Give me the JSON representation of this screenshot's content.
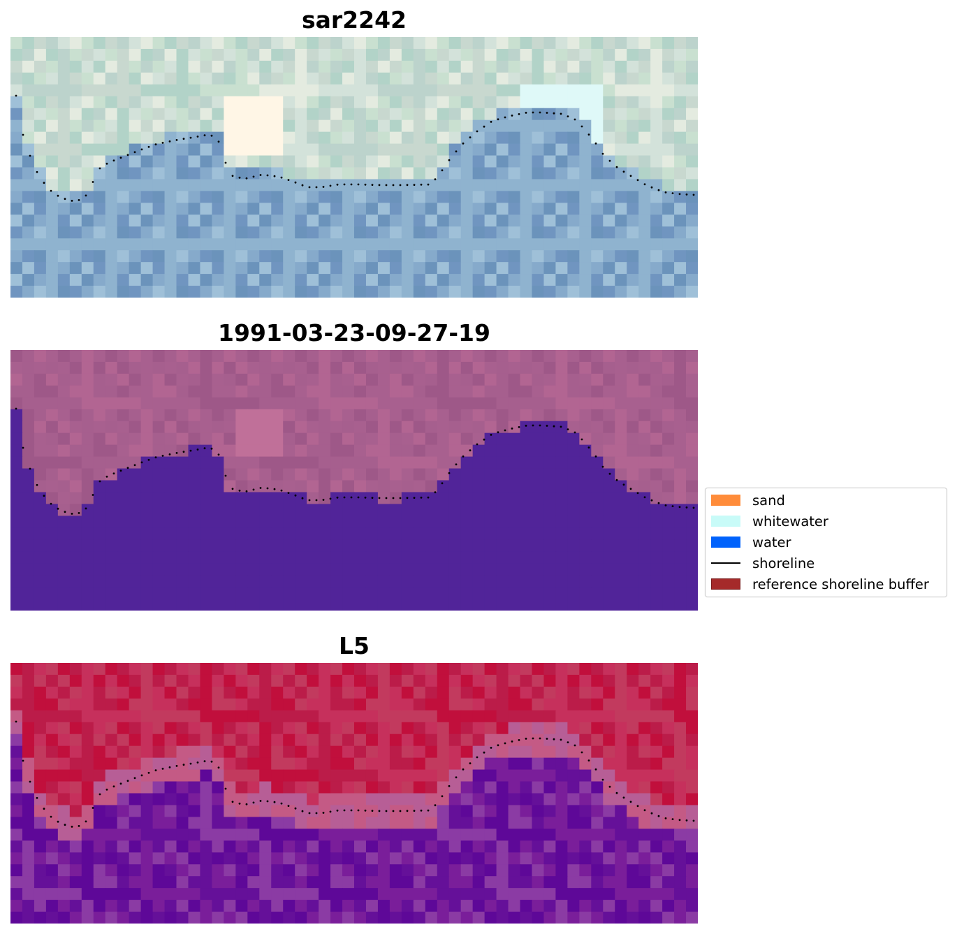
{
  "panels": [
    {
      "title": "sar2242",
      "kind": "rgb",
      "palette": {
        "top": [
          "#c9e0d0",
          "#b2d3c8",
          "#c8d8cf",
          "#bcd3cc",
          "#d3e2da",
          "#e4ebe0"
        ],
        "land_highlight": [
          "#fff6e6",
          "#dff9f8"
        ],
        "water": [
          "#9fc0d8",
          "#86aacb",
          "#7095c0",
          "#6b93bb",
          "#8fb3cf"
        ]
      }
    },
    {
      "title": "1991-03-23-09-27-19",
      "kind": "classified",
      "palette": {
        "land": [
          "#9e5888",
          "#a65f8e",
          "#b26592",
          "#a8608f"
        ],
        "land_bright": "#c07099",
        "water": "#512499"
      }
    },
    {
      "title": "L5",
      "kind": "index",
      "palette": {
        "land": [
          "#c10f3c",
          "#bb1c49",
          "#c6305c",
          "#c23a5e"
        ],
        "transition": [
          "#c45a85",
          "#b75e96"
        ],
        "water": [
          "#7a1e9a",
          "#651099",
          "#8b3ba4",
          "#5e0898"
        ]
      }
    }
  ],
  "legend": {
    "items": [
      {
        "label": "sand",
        "type": "patch",
        "color": "#ff8c3a"
      },
      {
        "label": "whitewater",
        "type": "patch",
        "color": "#c8fbf8"
      },
      {
        "label": "water",
        "type": "patch",
        "color": "#0062fc"
      },
      {
        "label": "shoreline",
        "type": "line",
        "color": "#000000"
      },
      {
        "label": "reference shoreline buffer",
        "type": "patch",
        "color": "#a52a2a",
        "edge": "#7a1d1d"
      }
    ]
  }
}
